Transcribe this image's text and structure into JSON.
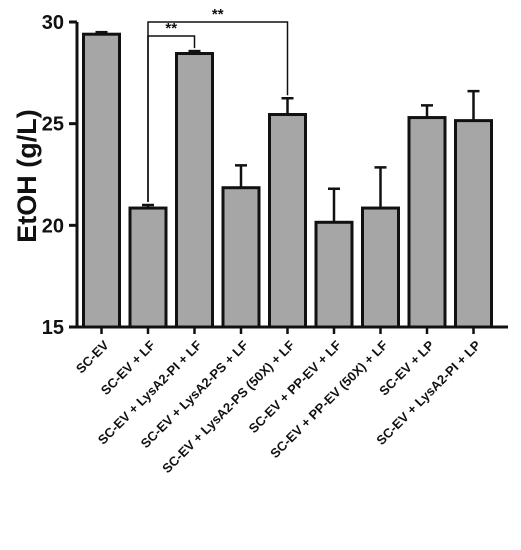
{
  "chart_data": {
    "type": "bar",
    "title": "",
    "xlabel": "",
    "ylabel": "EtOH (g/L)",
    "ylim": [
      15,
      30
    ],
    "yticks": [
      15,
      20,
      25,
      30
    ],
    "grid": false,
    "categories": [
      "SC-EV",
      "SC-EV + LF",
      "SC-EV + LysA2-PI + LF",
      "SC-EV + LysA2-PS + LF",
      "SC-EV + LysA2-PS (50X) + LF",
      "SC-EV + PP-EV + LF",
      "SC-EV + PP-EV (50X) + LF",
      "SC-EV + LP",
      "SC-EV + LysA2-PI + LP"
    ],
    "values": [
      29.4,
      20.85,
      28.45,
      21.85,
      25.45,
      20.15,
      20.85,
      25.3,
      25.15
    ],
    "errors": [
      0.1,
      0.15,
      0.12,
      1.1,
      0.8,
      1.65,
      2.0,
      0.6,
      1.45
    ],
    "bar_color": "#a6a6a6",
    "significance": [
      {
        "from": 1,
        "to": 2,
        "label": "**"
      },
      {
        "from": 1,
        "to": 4,
        "label": "**"
      }
    ]
  }
}
